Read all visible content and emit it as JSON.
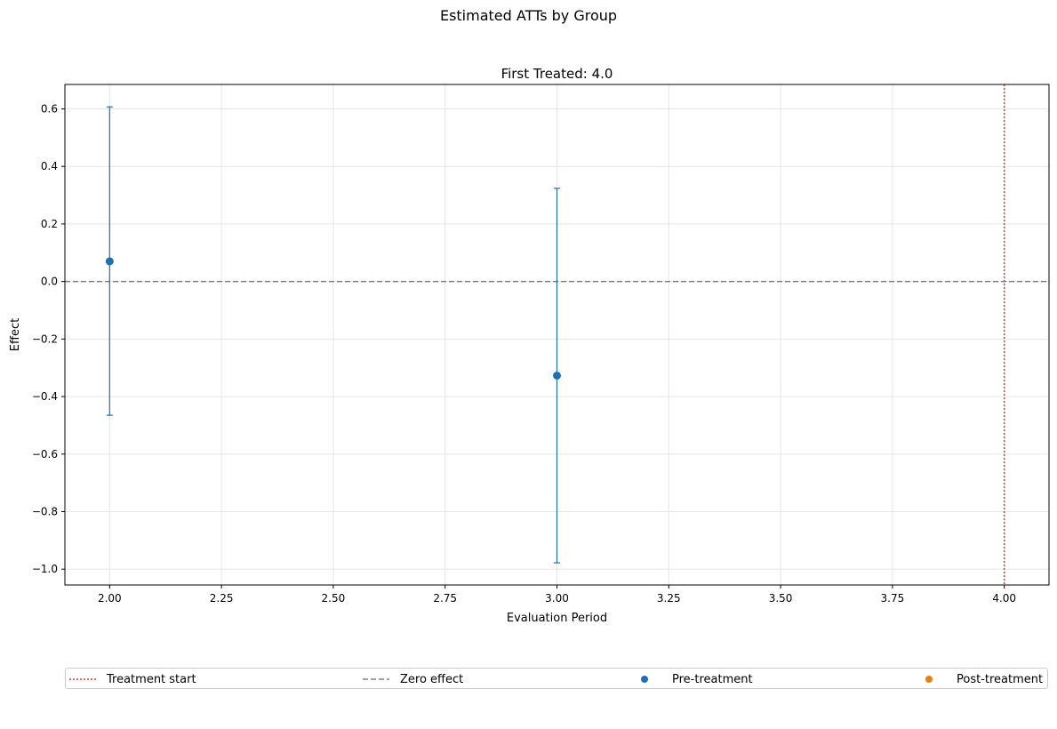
{
  "figure": {
    "suptitle": "Estimated ATTs by Group"
  },
  "chart_data": {
    "type": "scatter",
    "title": "First Treated: 4.0",
    "xlabel": "Evaluation Period",
    "ylabel": "Effect",
    "xlim": [
      1.9,
      4.1
    ],
    "ylim": [
      -1.055,
      0.685
    ],
    "xticks": [
      2.0,
      2.25,
      2.5,
      2.75,
      3.0,
      3.25,
      3.5,
      3.75,
      4.0
    ],
    "xtick_labels": [
      "2.00",
      "2.25",
      "2.50",
      "2.75",
      "3.00",
      "3.25",
      "3.50",
      "3.75",
      "4.00"
    ],
    "yticks": [
      -1.0,
      -0.8,
      -0.6,
      -0.4,
      -0.2,
      0.0,
      0.2,
      0.4,
      0.6
    ],
    "ytick_labels": [
      "−1.0",
      "−0.8",
      "−0.6",
      "−0.4",
      "−0.2",
      "0.0",
      "0.2",
      "0.4",
      "0.6"
    ],
    "grid": true,
    "series": [
      {
        "name": "Pre-treatment",
        "color": "#1f6fb4",
        "points": [
          {
            "x": 2.0,
            "y": 0.07,
            "lower": -0.465,
            "upper": 0.607
          },
          {
            "x": 3.0,
            "y": -0.327,
            "lower": -0.978,
            "upper": 0.324
          }
        ]
      },
      {
        "name": "Post-treatment",
        "color": "#e8820c",
        "points": []
      }
    ],
    "reference_lines": [
      {
        "name": "Treatment start",
        "orientation": "vertical",
        "value": 4.0,
        "color": "#e8352a",
        "style": "dotted"
      },
      {
        "name": "Zero effect",
        "orientation": "horizontal",
        "value": 0.0,
        "color": "#808080",
        "style": "dashed"
      }
    ],
    "legend": {
      "placement": "bottom",
      "entries": [
        {
          "label": "Treatment start",
          "kind": "dotted-line",
          "color": "#e8352a"
        },
        {
          "label": "Zero effect",
          "kind": "dashed-line",
          "color": "#808080"
        },
        {
          "label": "Pre-treatment",
          "kind": "marker",
          "color": "#1f6fb4"
        },
        {
          "label": "Post-treatment",
          "kind": "marker",
          "color": "#e8820c"
        }
      ]
    }
  }
}
